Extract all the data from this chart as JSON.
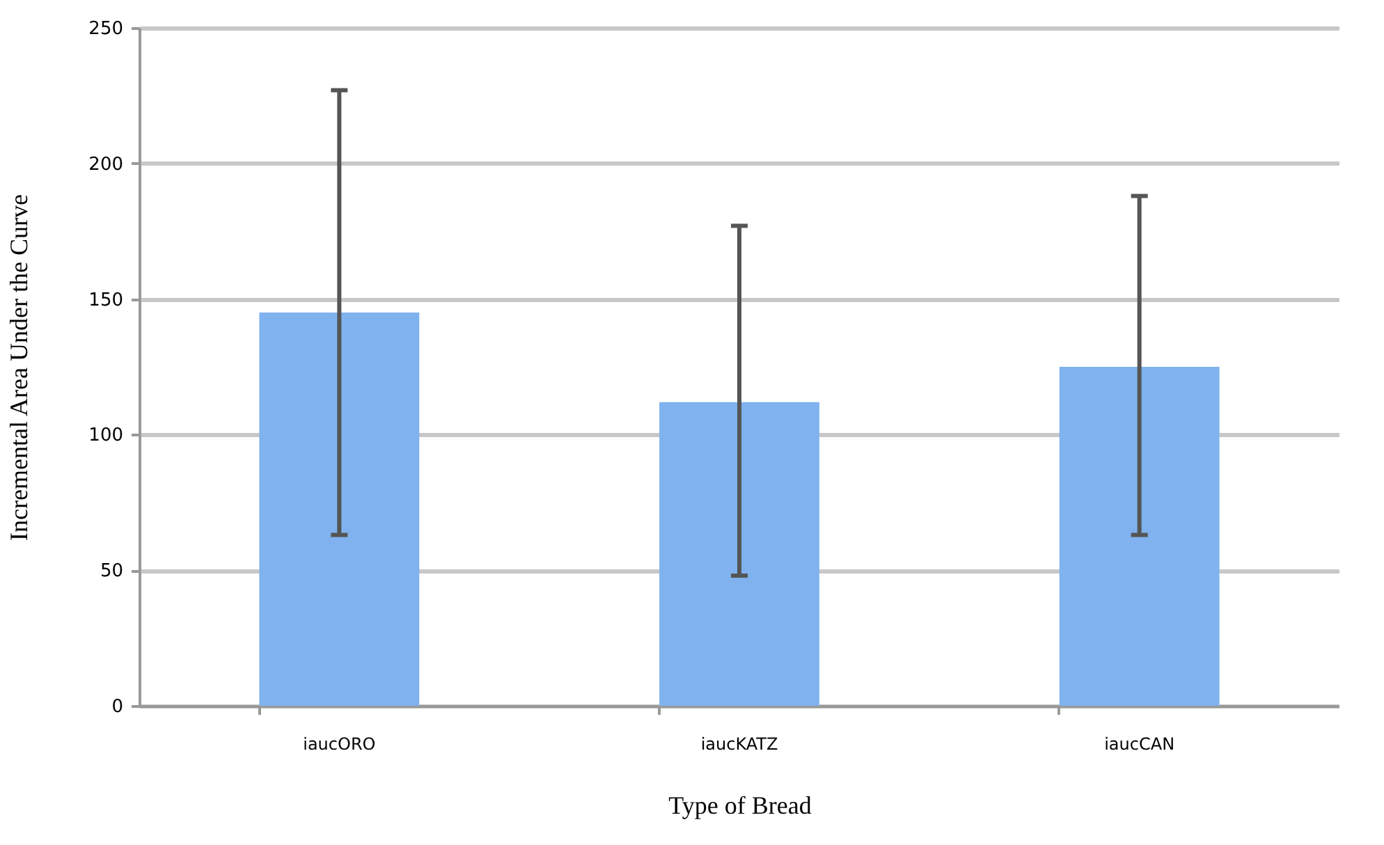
{
  "chart_data": {
    "type": "bar",
    "xlabel": "Type of Bread",
    "ylabel": "Incremental Area Under the Curve",
    "categories": [
      "iaucORO",
      "iaucKATZ",
      "iaucCAN"
    ],
    "values": [
      145,
      112,
      125
    ],
    "errors": [
      [
        63,
        227
      ],
      [
        48,
        177
      ],
      [
        63,
        188
      ]
    ],
    "color": "#7fb2ee",
    "ylim": [
      0,
      250
    ],
    "yticks": [
      0,
      50,
      100,
      150,
      200,
      250
    ],
    "grid": "y"
  }
}
